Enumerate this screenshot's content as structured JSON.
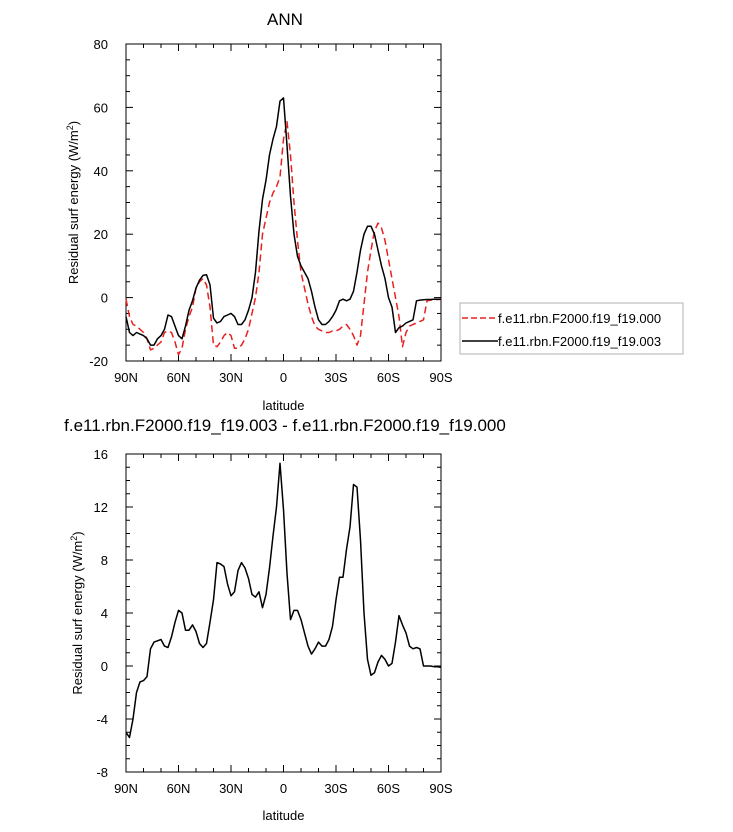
{
  "chart_data": [
    {
      "type": "line",
      "title": "ANN",
      "xlabel": "latitude",
      "ylabel": "Residual surf energy (W/m",
      "ylabel_sup": "2",
      "ylabel_close": ")",
      "xlim": [
        90,
        -90
      ],
      "ylim": [
        -20,
        80
      ],
      "x_ticks": [
        90,
        60,
        30,
        0,
        -30,
        -60,
        -90
      ],
      "x_tick_labels": [
        "90N",
        "60N",
        "30N",
        "0",
        "30S",
        "60S",
        "90S"
      ],
      "y_ticks": [
        -20,
        0,
        20,
        40,
        60,
        80
      ],
      "y_tick_labels": [
        "-20",
        "0",
        "20",
        "40",
        "60",
        "80"
      ],
      "grid": false,
      "legend": "right",
      "series": [
        {
          "name": "f.e11.rbn.F2000.f19_f19.000",
          "color": "#e8201e",
          "dash": "dashed",
          "x": [
            90,
            88,
            86,
            84,
            82,
            80,
            78,
            76,
            74,
            72,
            70,
            68,
            66,
            64,
            62,
            60,
            58,
            56,
            54,
            52,
            50,
            48,
            46,
            44,
            42,
            40,
            38,
            36,
            34,
            32,
            30,
            28,
            26,
            24,
            22,
            20,
            18,
            16,
            14,
            12,
            10,
            8,
            6,
            4,
            2,
            0,
            -2,
            -4,
            -6,
            -8,
            -10,
            -12,
            -14,
            -16,
            -18,
            -20,
            -22,
            -24,
            -26,
            -28,
            -30,
            -32,
            -34,
            -36,
            -38,
            -40,
            -42,
            -44,
            -46,
            -48,
            -50,
            -52,
            -54,
            -56,
            -58,
            -60,
            -62,
            -64,
            -66,
            -68,
            -70,
            -72,
            -74,
            -76,
            -78,
            -80,
            -82,
            -84,
            -86,
            -88,
            -90
          ],
          "y": [
            -0.5,
            -6,
            -8.5,
            -9,
            -10,
            -11,
            -13,
            -16.5,
            -16,
            -15,
            -14,
            -11,
            -10.5,
            -11,
            -14,
            -18,
            -16,
            -10,
            -6,
            -3,
            3,
            5,
            6,
            4,
            -3,
            -15,
            -15.5,
            -14,
            -12,
            -11,
            -12,
            -16,
            -16,
            -15,
            -13,
            -10,
            -5,
            0,
            8,
            20,
            25,
            30,
            33,
            35,
            38,
            50,
            55.5,
            45,
            30,
            18,
            8,
            3,
            -2,
            -6,
            -9,
            -10,
            -10.5,
            -11,
            -11,
            -10.5,
            -10.5,
            -10,
            -9,
            -8.5,
            -10,
            -12,
            -15,
            -12,
            -2,
            8,
            15,
            21,
            23.5,
            22,
            18,
            12,
            6,
            0,
            -6,
            -15.5,
            -11,
            -9,
            -8.5,
            -8,
            -7.5,
            -7,
            -1,
            -0.8,
            -0.7,
            -0.6,
            -0.6
          ]
        },
        {
          "name": "f.e11.rbn.F2000.f19_f19.003",
          "color": "#000000",
          "dash": "solid",
          "x": [
            90,
            88,
            86,
            84,
            82,
            80,
            78,
            76,
            74,
            72,
            70,
            68,
            66,
            64,
            62,
            60,
            58,
            56,
            54,
            52,
            50,
            48,
            46,
            44,
            42,
            40,
            38,
            36,
            34,
            32,
            30,
            28,
            26,
            24,
            22,
            20,
            18,
            16,
            14,
            12,
            10,
            8,
            6,
            4,
            2,
            0,
            -2,
            -4,
            -6,
            -8,
            -10,
            -12,
            -14,
            -16,
            -18,
            -20,
            -22,
            -24,
            -26,
            -28,
            -30,
            -32,
            -34,
            -36,
            -38,
            -40,
            -42,
            -44,
            -46,
            -48,
            -50,
            -52,
            -54,
            -56,
            -58,
            -60,
            -62,
            -64,
            -66,
            -68,
            -70,
            -72,
            -74,
            -76,
            -78,
            -80,
            -82,
            -84,
            -86,
            -88,
            -90
          ],
          "y": [
            -6,
            -11,
            -12,
            -11,
            -11.5,
            -12,
            -13,
            -15,
            -15,
            -13,
            -12,
            -10,
            -5.5,
            -6,
            -9,
            -12,
            -13,
            -9,
            -4,
            -1,
            3,
            5.5,
            7,
            7.2,
            4,
            -6.5,
            -8,
            -7.5,
            -6,
            -5.5,
            -5,
            -6,
            -8.5,
            -8.5,
            -7,
            -4,
            0,
            8,
            21,
            31,
            37,
            45,
            50,
            54,
            62,
            63,
            48,
            32,
            20,
            13,
            10,
            8,
            6,
            2,
            -3,
            -7,
            -8.5,
            -8.5,
            -7.5,
            -6,
            -4,
            -1,
            -0.5,
            -1,
            -0.5,
            2,
            8,
            15,
            20,
            22.5,
            22.5,
            20,
            15,
            10,
            6,
            0,
            -3,
            -11,
            -9.5,
            -9,
            -8,
            -7.5,
            -7,
            -1,
            -0.8,
            -0.7,
            -0.6,
            -0.6,
            -0.5,
            -0.5,
            -0.5
          ]
        }
      ]
    },
    {
      "type": "line",
      "title": "f.e11.rbn.F2000.f19_f19.003 - f.e11.rbn.F2000.f19_f19.000",
      "xlabel": "latitude",
      "ylabel": "Residual surf energy (W/m",
      "ylabel_sup": "2",
      "ylabel_close": ")",
      "xlim": [
        90,
        -90
      ],
      "ylim": [
        -8,
        16
      ],
      "x_ticks": [
        90,
        60,
        30,
        0,
        -30,
        -60,
        -90
      ],
      "x_tick_labels": [
        "90N",
        "60N",
        "30N",
        "0",
        "30S",
        "60S",
        "90S"
      ],
      "y_ticks": [
        -8,
        -4,
        0,
        4,
        8,
        12,
        16
      ],
      "y_tick_labels": [
        "-8",
        "-4",
        "0",
        "4",
        "8",
        "12",
        "16"
      ],
      "grid": false,
      "series": [
        {
          "color": "#000000",
          "dash": "solid",
          "x": [
            90,
            88,
            86,
            84,
            82,
            80,
            78,
            76,
            74,
            72,
            70,
            68,
            66,
            64,
            62,
            60,
            58,
            56,
            54,
            52,
            50,
            48,
            46,
            44,
            42,
            40,
            38,
            36,
            34,
            32,
            30,
            28,
            26,
            24,
            22,
            20,
            18,
            16,
            14,
            12,
            10,
            8,
            6,
            4,
            2,
            0,
            -2,
            -4,
            -6,
            -8,
            -10,
            -12,
            -14,
            -16,
            -18,
            -20,
            -22,
            -24,
            -26,
            -28,
            -30,
            -32,
            -34,
            -36,
            -38,
            -40,
            -42,
            -44,
            -46,
            -48,
            -50,
            -52,
            -54,
            -56,
            -58,
            -60,
            -62,
            -64,
            -66,
            -68,
            -70,
            -72,
            -74,
            -76,
            -78,
            -80,
            -82,
            -84,
            -86,
            -88,
            -90
          ],
          "y": [
            -5,
            -5.4,
            -4,
            -2,
            -1.2,
            -1.1,
            -0.8,
            1.3,
            1.8,
            1.9,
            2,
            1.5,
            1.4,
            2.2,
            3.3,
            4.2,
            4,
            2.7,
            2.7,
            3.1,
            2.6,
            1.7,
            1.4,
            1.7,
            3.3,
            5,
            7.8,
            7.7,
            7.5,
            6.2,
            5.3,
            5.6,
            7.2,
            7.8,
            7.4,
            6.6,
            5.4,
            5.2,
            5.6,
            4.4,
            5.4,
            7.4,
            9.8,
            12,
            15.3,
            11.8,
            7,
            3.5,
            4.2,
            4.2,
            3.5,
            2.5,
            1.5,
            0.9,
            1.3,
            1.8,
            1.5,
            1.5,
            2,
            3,
            5,
            6.7,
            6.7,
            8.8,
            10.5,
            13.7,
            13.5,
            9.5,
            4,
            0.5,
            -0.7,
            -0.5,
            0.3,
            0.8,
            0.5,
            0,
            0.2,
            1.8,
            3.8,
            3.1,
            2.5,
            1.5,
            1.3,
            1.4,
            1.3,
            0,
            0,
            0,
            -0.05,
            -0.05,
            -0.1
          ]
        }
      ]
    }
  ]
}
